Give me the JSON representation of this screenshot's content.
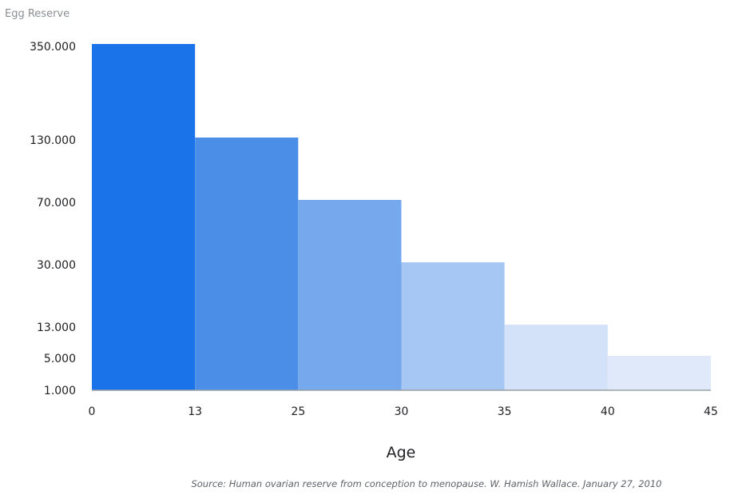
{
  "chart_data": {
    "type": "bar",
    "ylabel": "Egg Reserve",
    "xlabel": "Age",
    "source": "Source: Human ovarian reserve from conception to menopause. W. Hamish Wallace. January 27, 2010",
    "x_ticks": [
      "0",
      "13",
      "25",
      "30",
      "35",
      "40",
      "45"
    ],
    "x_values": [
      0,
      13,
      25,
      30,
      35,
      40,
      45
    ],
    "y_ticks": [
      {
        "label": "350.000",
        "value": 350000
      },
      {
        "label": "130.000",
        "value": 130000
      },
      {
        "label": "70.000",
        "value": 70000
      },
      {
        "label": "30.000",
        "value": 30000
      },
      {
        "label": "13.000",
        "value": 13000
      },
      {
        "label": "5.000",
        "value": 5000
      },
      {
        "label": "1.000",
        "value": 1000
      }
    ],
    "bars": [
      {
        "x_start": 0,
        "x_end": 13,
        "value": 350000,
        "color": "#1a73e8"
      },
      {
        "x_start": 13,
        "x_end": 25,
        "value": 130000,
        "color": "#4a8ee8"
      },
      {
        "x_start": 25,
        "x_end": 30,
        "value": 70000,
        "color": "#76a8ed"
      },
      {
        "x_start": 30,
        "x_end": 35,
        "value": 30000,
        "color": "#a6c6f3"
      },
      {
        "x_start": 35,
        "x_end": 40,
        "value": 13000,
        "color": "#d3e2f9"
      },
      {
        "x_start": 40,
        "x_end": 45,
        "value": 5000,
        "color": "#dfe9f9"
      }
    ],
    "axis_color": "#9aa0a6"
  }
}
